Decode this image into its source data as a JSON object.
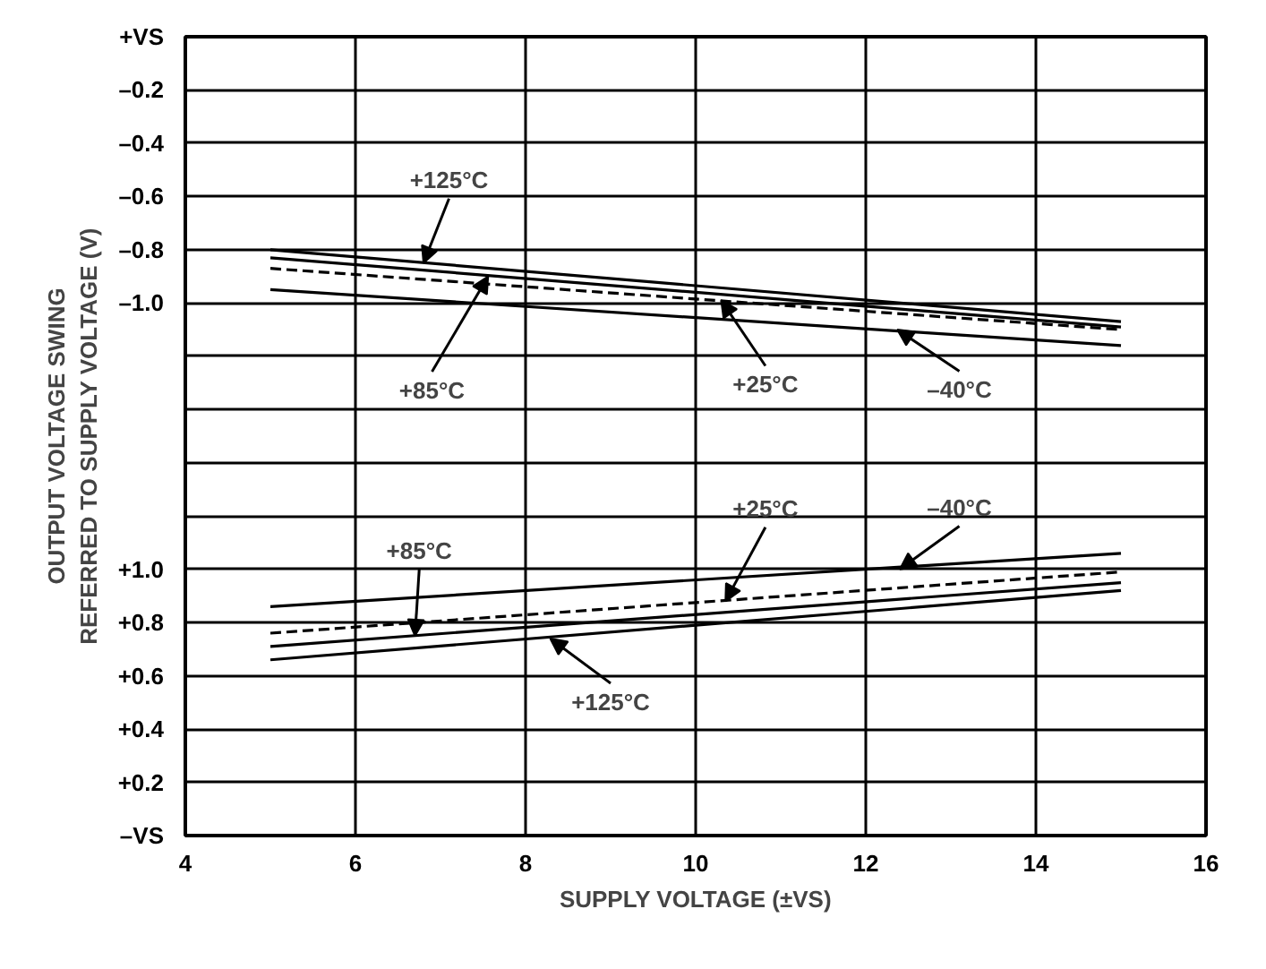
{
  "chart_data": {
    "type": "line",
    "xlabel": "SUPPLY VOLTAGE (±VS)",
    "ylabel": "OUTPUT VOLTAGE SWING\nREFERRED TO SUPPLY VOLTAGE (V)",
    "xlim": [
      4,
      16
    ],
    "xticks": [
      4,
      6,
      8,
      10,
      12,
      14,
      16
    ],
    "ylim": [
      0,
      3.0
    ],
    "yticks": [
      {
        "value": 0,
        "label": "–VS"
      },
      {
        "value": 0.2,
        "label": "+0.2"
      },
      {
        "value": 0.4,
        "label": "+0.4"
      },
      {
        "value": 0.6,
        "label": "+0.6"
      },
      {
        "value": 0.8,
        "label": "+0.8"
      },
      {
        "value": 1.0,
        "label": "+1.0"
      },
      {
        "value": 1.2,
        "label": null
      },
      {
        "value": 1.4,
        "label": null
      },
      {
        "value": 1.6,
        "label": null
      },
      {
        "value": 1.8,
        "label": null
      }
    ],
    "y2lim": [
      -3.0,
      0
    ],
    "y2ticks": [
      {
        "value": -1.0,
        "label": "–1.0"
      },
      {
        "value": -0.8,
        "label": "–0.8"
      },
      {
        "value": -0.6,
        "label": "–0.6"
      },
      {
        "value": -0.4,
        "label": "–0.4"
      },
      {
        "value": -0.2,
        "label": "–0.2"
      },
      {
        "value": 0,
        "label": "+VS"
      }
    ],
    "x": [
      5,
      15
    ],
    "grid": true,
    "series": [
      {
        "color": "#000000",
        "line_style": "solid",
        "axis": "y2",
        "values": [
          -0.8,
          -1.07
        ]
      },
      {
        "color": "#000000",
        "line_style": "solid",
        "axis": "y2",
        "values": [
          -0.83,
          -1.09
        ]
      },
      {
        "color": "#000000",
        "line_style": "dashed",
        "axis": "y2",
        "values": [
          -0.87,
          -1.1
        ]
      },
      {
        "color": "#000000",
        "line_style": "solid",
        "axis": "y2",
        "values": [
          -0.95,
          -1.16
        ]
      },
      {
        "color": "#000000",
        "line_style": "solid",
        "values": [
          0.86,
          1.06
        ]
      },
      {
        "color": "#000000",
        "line_style": "dashed",
        "values": [
          0.76,
          0.99
        ]
      },
      {
        "color": "#000000",
        "line_style": "solid",
        "values": [
          0.71,
          0.95
        ]
      },
      {
        "color": "#000000",
        "line_style": "solid",
        "values": [
          0.66,
          0.92
        ]
      }
    ],
    "annotations": [
      {
        "text": "+125°C",
        "x": 6.8,
        "y": 2.15
      },
      {
        "text": "+85°C",
        "x": 7.56,
        "y": 2.1
      },
      {
        "text": "+25°C",
        "x": 10.3,
        "y": 2.01
      },
      {
        "text": "–40°C",
        "x": 12.37,
        "y": 1.9
      },
      {
        "text": "+25°C",
        "x": 10.35,
        "y": 0.88
      },
      {
        "text": "–40°C",
        "x": 12.4,
        "y": 1.0
      },
      {
        "text": "+85°C",
        "x": 6.7,
        "y": 0.75
      },
      {
        "text": "+125°C",
        "x": 8.29,
        "y": 0.74
      }
    ]
  }
}
